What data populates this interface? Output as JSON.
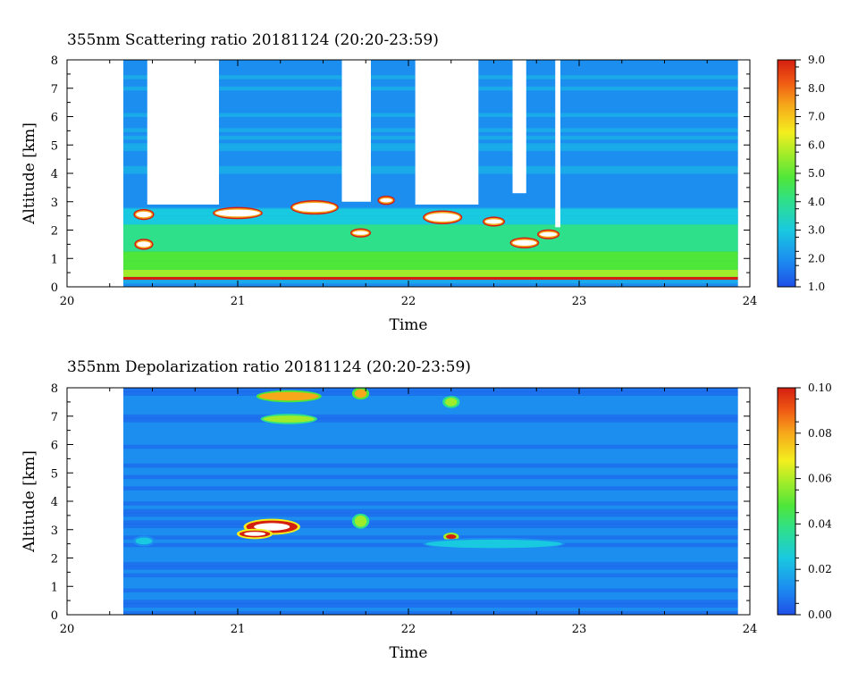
{
  "chart_data": [
    {
      "type": "heatmap",
      "title": "355nm Scattering ratio  20181124 (20:20-23:59)",
      "xlabel": "Time",
      "ylabel": "Altitude [km]",
      "xlim": [
        20,
        24
      ],
      "ylim": [
        0,
        8
      ],
      "x_ticks": [
        "20",
        "21",
        "22",
        "23",
        "24"
      ],
      "y_ticks": [
        "0",
        "1",
        "2",
        "3",
        "4",
        "5",
        "6",
        "7",
        "8"
      ],
      "data_start": 20.33,
      "data_end": 23.93,
      "colorbar": {
        "min": 1.0,
        "max": 9.0,
        "ticks": [
          "1.0",
          "2.0",
          "3.0",
          "4.0",
          "5.0",
          "6.0",
          "7.0",
          "8.0",
          "9.0"
        ]
      },
      "colormap": [
        "#1f4fe8",
        "#1c8ef0",
        "#19c9e0",
        "#2fe08a",
        "#4fe63a",
        "#9fec2a",
        "#f4ee1e",
        "#f6a81a",
        "#f05a14",
        "#d41e10"
      ],
      "background_ratio": 2.4,
      "boundary_layer": [
        {
          "y0": 0.25,
          "y1": 0.35,
          "v": 8.6
        },
        {
          "y0": 0.35,
          "y1": 0.6,
          "v": 5.6
        },
        {
          "y0": 0.6,
          "y1": 0.9,
          "v": 4.7
        },
        {
          "y0": 0.9,
          "y1": 1.25,
          "v": 4.2
        },
        {
          "y0": 1.25,
          "y1": 1.7,
          "v": 3.9
        },
        {
          "y0": 1.7,
          "y1": 2.2,
          "v": 3.5
        },
        {
          "y0": 2.2,
          "y1": 2.5,
          "v": 3.0
        },
        {
          "y0": 2.5,
          "y1": 2.75,
          "v": 2.6
        }
      ],
      "clear_gaps": [
        {
          "t0": 20.47,
          "t1": 20.89,
          "y0": 2.9
        },
        {
          "t0": 21.61,
          "t1": 21.78,
          "y0": 3.0
        },
        {
          "t0": 22.04,
          "t1": 22.41,
          "y0": 2.9
        },
        {
          "t0": 22.61,
          "t1": 22.69,
          "y0": 3.3
        },
        {
          "t0": 22.86,
          "t1": 22.89,
          "y0": 2.1
        }
      ],
      "strong_features": [
        {
          "t": 20.45,
          "y": 1.5,
          "w": 0.08,
          "h": 0.1
        },
        {
          "t": 20.45,
          "y": 2.55,
          "w": 0.09,
          "h": 0.1
        },
        {
          "t": 21.0,
          "y": 2.6,
          "w": 0.26,
          "h": 0.12
        },
        {
          "t": 21.45,
          "y": 2.8,
          "w": 0.25,
          "h": 0.16
        },
        {
          "t": 21.72,
          "y": 1.9,
          "w": 0.09,
          "h": 0.07
        },
        {
          "t": 21.87,
          "y": 3.05,
          "w": 0.07,
          "h": 0.07
        },
        {
          "t": 22.2,
          "y": 2.45,
          "w": 0.2,
          "h": 0.15
        },
        {
          "t": 22.5,
          "y": 2.3,
          "w": 0.1,
          "h": 0.08
        },
        {
          "t": 22.68,
          "y": 1.55,
          "w": 0.14,
          "h": 0.1
        },
        {
          "t": 22.82,
          "y": 1.85,
          "w": 0.1,
          "h": 0.08
        }
      ]
    },
    {
      "type": "heatmap",
      "title": "355nm Depolarization ratio  20181124 (20:20-23:59)",
      "xlabel": "Time",
      "ylabel": "Altitude [km]",
      "xlim": [
        20,
        24
      ],
      "ylim": [
        0,
        8
      ],
      "x_ticks": [
        "20",
        "21",
        "22",
        "23",
        "24"
      ],
      "y_ticks": [
        "0",
        "1",
        "2",
        "3",
        "4",
        "5",
        "6",
        "7",
        "8"
      ],
      "data_start": 20.33,
      "data_end": 23.93,
      "colorbar": {
        "min": 0.0,
        "max": 0.1,
        "ticks": [
          "0.00",
          "0.02",
          "0.04",
          "0.06",
          "0.08",
          "0.10"
        ]
      },
      "colormap": [
        "#1f4fe8",
        "#1c8ef0",
        "#19c9e0",
        "#2fe08a",
        "#4fe63a",
        "#9fec2a",
        "#f4ee1e",
        "#f6a81a",
        "#f05a14",
        "#d41e10"
      ],
      "background_ratio": 0.011,
      "features": [
        {
          "t": 21.2,
          "y": 3.1,
          "w": 0.3,
          "h": 0.22,
          "v": 0.1
        },
        {
          "t": 21.1,
          "y": 2.85,
          "w": 0.18,
          "h": 0.12,
          "v": 0.1
        },
        {
          "t": 21.72,
          "y": 3.3,
          "w": 0.07,
          "h": 0.2,
          "v": 0.05
        },
        {
          "t": 22.25,
          "y": 2.75,
          "w": 0.06,
          "h": 0.08,
          "v": 0.09
        },
        {
          "t": 21.3,
          "y": 7.7,
          "w": 0.35,
          "h": 0.15,
          "v": 0.07
        },
        {
          "t": 21.3,
          "y": 6.9,
          "w": 0.3,
          "h": 0.12,
          "v": 0.05
        },
        {
          "t": 21.72,
          "y": 7.8,
          "w": 0.07,
          "h": 0.15,
          "v": 0.08
        },
        {
          "t": 22.25,
          "y": 7.5,
          "w": 0.07,
          "h": 0.15,
          "v": 0.05
        },
        {
          "t": 20.45,
          "y": 2.6,
          "w": 0.1,
          "h": 0.12,
          "v": 0.025
        },
        {
          "t": 22.5,
          "y": 2.5,
          "w": 0.8,
          "h": 0.15,
          "v": 0.022
        }
      ]
    }
  ]
}
